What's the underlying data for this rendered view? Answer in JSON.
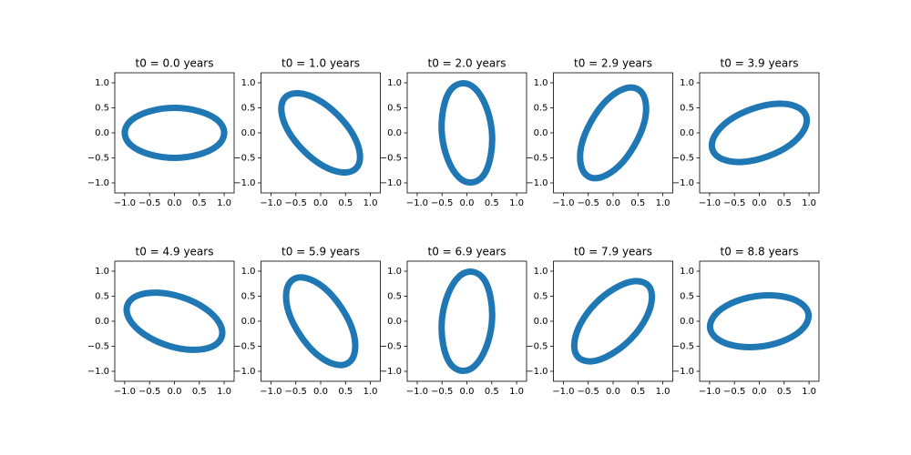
{
  "chart_data": [
    {
      "type": "line",
      "title": "t0 = 0.0 years",
      "color": "#1f77b4",
      "x": [
        1,
        0.87,
        0.5,
        0,
        -0.5,
        -0.87,
        -1,
        -0.87,
        -0.5,
        0,
        0.5,
        0.87
      ],
      "series": [
        {
          "values": [
            0,
            0.25,
            0.43,
            0.5,
            0.43,
            0.25,
            0,
            -0.25,
            -0.43,
            -0.5,
            -0.43,
            -0.25
          ]
        }
      ],
      "xlim": [
        -1.2,
        1.2
      ],
      "ylim": [
        -1.2,
        1.2
      ],
      "xticks": [
        {
          "value": -1,
          "label": "−1.0"
        },
        {
          "value": -0.5,
          "label": "−0.5"
        },
        {
          "value": 0,
          "label": "0.0"
        },
        {
          "value": 0.5,
          "label": "0.5"
        },
        {
          "value": 1,
          "label": "1.0"
        }
      ],
      "yticks": [
        {
          "value": -1,
          "label": "−1.0"
        },
        {
          "value": -0.5,
          "label": "−0.5"
        },
        {
          "value": 0,
          "label": "0.0"
        },
        {
          "value": 0.5,
          "label": "0.5"
        },
        {
          "value": 1,
          "label": "1.0"
        }
      ]
    },
    {
      "type": "line",
      "title": "t0 = 1.0 years",
      "color": "#1f77b4",
      "x": [
        -0.71,
        -0.79,
        -0.66,
        -0.35,
        0.05,
        0.44,
        0.71,
        0.79,
        0.66,
        0.35,
        -0.05,
        -0.44
      ],
      "series": [
        {
          "values": [
            0.71,
            0.44,
            0.05,
            -0.35,
            -0.66,
            -0.79,
            -0.71,
            -0.44,
            -0.05,
            0.35,
            0.66,
            0.79
          ]
        }
      ],
      "xlim": [
        -1.2,
        1.2
      ],
      "ylim": [
        -1.2,
        1.2
      ],
      "xticks": [
        {
          "value": -1,
          "label": "−1.0"
        },
        {
          "value": -0.5,
          "label": "−0.5"
        },
        {
          "value": 0,
          "label": "0.0"
        },
        {
          "value": 0.5,
          "label": "0.5"
        },
        {
          "value": 1,
          "label": "1.0"
        }
      ],
      "yticks": [
        {
          "value": -1,
          "label": "−1.0"
        },
        {
          "value": -0.5,
          "label": "−0.5"
        },
        {
          "value": 0,
          "label": "0.0"
        },
        {
          "value": 0.5,
          "label": "0.5"
        },
        {
          "value": 1,
          "label": "1.0"
        }
      ]
    },
    {
      "type": "line",
      "title": "t0 = 2.0 years",
      "color": "#1f77b4",
      "x": [
        -0.1,
        -0.34,
        -0.48,
        -0.5,
        -0.38,
        -0.16,
        0.1,
        0.34,
        0.48,
        0.5,
        0.38,
        0.16
      ],
      "series": [
        {
          "values": [
            0.99,
            0.84,
            0.45,
            -0.05,
            -0.54,
            -0.89,
            -0.99,
            -0.84,
            -0.45,
            0.05,
            0.54,
            0.89
          ]
        }
      ],
      "xlim": [
        -1.2,
        1.2
      ],
      "ylim": [
        -1.2,
        1.2
      ],
      "xticks": [
        {
          "value": -1,
          "label": "−1.0"
        },
        {
          "value": -0.5,
          "label": "−0.5"
        },
        {
          "value": 0,
          "label": "0.0"
        },
        {
          "value": 0.5,
          "label": "0.5"
        },
        {
          "value": 1,
          "label": "1.0"
        }
      ],
      "yticks": [
        {
          "value": -1,
          "label": "−1.0"
        },
        {
          "value": -0.5,
          "label": "−0.5"
        },
        {
          "value": 0,
          "label": "0.0"
        },
        {
          "value": 0.5,
          "label": "0.5"
        },
        {
          "value": 1,
          "label": "1.0"
        }
      ]
    },
    {
      "type": "line",
      "title": "t0 = 2.9 years",
      "color": "#1f77b4",
      "x": [
        0.5,
        0.22,
        -0.13,
        -0.43,
        -0.63,
        -0.65,
        -0.5,
        -0.22,
        0.13,
        0.43,
        0.63,
        0.65
      ],
      "series": [
        {
          "values": [
            0.87,
            0.88,
            0.65,
            0.25,
            -0.22,
            -0.63,
            -0.87,
            -0.88,
            -0.65,
            -0.25,
            0.22,
            0.63
          ]
        }
      ],
      "xlim": [
        -1.2,
        1.2
      ],
      "ylim": [
        -1.2,
        1.2
      ],
      "xticks": [
        {
          "value": -1,
          "label": "−1.0"
        },
        {
          "value": -0.5,
          "label": "−0.5"
        },
        {
          "value": 0,
          "label": "0.0"
        },
        {
          "value": 0.5,
          "label": "0.5"
        },
        {
          "value": 1,
          "label": "1.0"
        }
      ],
      "yticks": [
        {
          "value": -1,
          "label": "−1.0"
        },
        {
          "value": -0.5,
          "label": "−0.5"
        },
        {
          "value": 0,
          "label": "0.0"
        },
        {
          "value": 0.5,
          "label": "0.5"
        },
        {
          "value": 1,
          "label": "1.0"
        }
      ]
    },
    {
      "type": "line",
      "title": "t0 = 3.9 years",
      "color": "#1f77b4",
      "x": [
        0.94,
        0.73,
        0.32,
        -0.17,
        -0.62,
        -0.9,
        -0.94,
        -0.73,
        -0.32,
        0.17,
        0.62,
        0.9
      ],
      "series": [
        {
          "values": [
            0.34,
            0.53,
            0.58,
            0.47,
            0.24,
            -0.06,
            -0.34,
            -0.53,
            -0.58,
            -0.47,
            -0.24,
            0.06
          ]
        }
      ],
      "xlim": [
        -1.2,
        1.2
      ],
      "ylim": [
        -1.2,
        1.2
      ],
      "xticks": [
        {
          "value": -1,
          "label": "−1.0"
        },
        {
          "value": -0.5,
          "label": "−0.5"
        },
        {
          "value": 0,
          "label": "0.0"
        },
        {
          "value": 0.5,
          "label": "0.5"
        },
        {
          "value": 1,
          "label": "1.0"
        }
      ],
      "yticks": [
        {
          "value": -1,
          "label": "−1.0"
        },
        {
          "value": -0.5,
          "label": "−0.5"
        },
        {
          "value": 0,
          "label": "0.0"
        },
        {
          "value": 0.5,
          "label": "0.5"
        },
        {
          "value": 1,
          "label": "1.0"
        }
      ]
    },
    {
      "type": "line",
      "title": "t0 = 4.9 years",
      "color": "#1f77b4",
      "x": [
        -0.95,
        -0.9,
        -0.61,
        -0.15,
        0.34,
        0.75,
        0.95,
        0.9,
        0.61,
        0.15,
        -0.34,
        -0.75
      ],
      "series": [
        {
          "values": [
            0.31,
            0.03,
            -0.26,
            -0.48,
            -0.57,
            -0.51,
            -0.31,
            -0.03,
            0.26,
            0.48,
            0.57,
            0.51
          ]
        }
      ],
      "xlim": [
        -1.2,
        1.2
      ],
      "ylim": [
        -1.2,
        1.2
      ],
      "xticks": [
        {
          "value": -1,
          "label": "−1.0"
        },
        {
          "value": -0.5,
          "label": "−0.5"
        },
        {
          "value": 0,
          "label": "0.0"
        },
        {
          "value": 0.5,
          "label": "0.5"
        },
        {
          "value": 1,
          "label": "1.0"
        }
      ],
      "yticks": [
        {
          "value": -1,
          "label": "−1.0"
        },
        {
          "value": -0.5,
          "label": "−0.5"
        },
        {
          "value": 0,
          "label": "0.0"
        },
        {
          "value": 0.5,
          "label": "0.5"
        },
        {
          "value": 1,
          "label": "1.0"
        }
      ]
    },
    {
      "type": "line",
      "title": "t0 = 5.9 years",
      "color": "#1f77b4",
      "x": [
        -0.56,
        -0.69,
        -0.64,
        -0.41,
        -0.08,
        0.28,
        0.56,
        0.69,
        0.64,
        0.41,
        0.08,
        -0.28
      ],
      "series": [
        {
          "values": [
            0.83,
            0.58,
            0.17,
            -0.28,
            -0.66,
            -0.86,
            -0.83,
            -0.58,
            -0.17,
            0.28,
            0.66,
            0.86
          ]
        }
      ],
      "xlim": [
        -1.2,
        1.2
      ],
      "ylim": [
        -1.2,
        1.2
      ],
      "xticks": [
        {
          "value": -1,
          "label": "−1.0"
        },
        {
          "value": -0.5,
          "label": "−0.5"
        },
        {
          "value": 0,
          "label": "0.0"
        },
        {
          "value": 0.5,
          "label": "0.5"
        },
        {
          "value": 1,
          "label": "1.0"
        }
      ],
      "yticks": [
        {
          "value": -1,
          "label": "−1.0"
        },
        {
          "value": -0.5,
          "label": "−0.5"
        },
        {
          "value": 0,
          "label": "0.0"
        },
        {
          "value": 0.5,
          "label": "0.5"
        },
        {
          "value": 1,
          "label": "1.0"
        }
      ]
    },
    {
      "type": "line",
      "title": "t0 = 6.9 years",
      "color": "#1f77b4",
      "x": [
        0.1,
        -0.16,
        -0.38,
        -0.5,
        -0.48,
        -0.34,
        -0.1,
        0.16,
        0.38,
        0.5,
        0.48,
        0.34
      ],
      "series": [
        {
          "values": [
            0.99,
            0.89,
            0.54,
            0.05,
            -0.45,
            -0.84,
            -0.99,
            -0.89,
            -0.54,
            -0.05,
            0.45,
            0.84
          ]
        }
      ],
      "xlim": [
        -1.2,
        1.2
      ],
      "ylim": [
        -1.2,
        1.2
      ],
      "xticks": [
        {
          "value": -1,
          "label": "−1.0"
        },
        {
          "value": -0.5,
          "label": "−0.5"
        },
        {
          "value": 0,
          "label": "0.0"
        },
        {
          "value": 0.5,
          "label": "0.5"
        },
        {
          "value": 1,
          "label": "1.0"
        }
      ],
      "yticks": [
        {
          "value": -1,
          "label": "−1.0"
        },
        {
          "value": -0.5,
          "label": "−0.5"
        },
        {
          "value": 0,
          "label": "0.0"
        },
        {
          "value": 0.5,
          "label": "0.5"
        },
        {
          "value": 1,
          "label": "1.0"
        }
      ]
    },
    {
      "type": "line",
      "title": "t0 = 7.9 years",
      "color": "#1f77b4",
      "x": [
        0.7,
        0.42,
        0.04,
        -0.36,
        -0.66,
        -0.78,
        -0.7,
        -0.42,
        -0.04,
        0.36,
        0.66,
        0.78
      ],
      "series": [
        {
          "values": [
            0.72,
            0.8,
            0.66,
            0.35,
            -0.06,
            -0.45,
            -0.72,
            -0.8,
            -0.66,
            -0.35,
            0.06,
            0.45
          ]
        }
      ],
      "xlim": [
        -1.2,
        1.2
      ],
      "ylim": [
        -1.2,
        1.2
      ],
      "xticks": [
        {
          "value": -1,
          "label": "−1.0"
        },
        {
          "value": -0.5,
          "label": "−0.5"
        },
        {
          "value": 0,
          "label": "0.0"
        },
        {
          "value": 0.5,
          "label": "0.5"
        },
        {
          "value": 1,
          "label": "1.0"
        }
      ],
      "yticks": [
        {
          "value": -1,
          "label": "−1.0"
        },
        {
          "value": -0.5,
          "label": "−0.5"
        },
        {
          "value": 0,
          "label": "0.0"
        },
        {
          "value": 0.5,
          "label": "0.5"
        },
        {
          "value": 1,
          "label": "1.0"
        }
      ]
    },
    {
      "type": "line",
      "title": "t0 = 8.8 years",
      "color": "#1f77b4",
      "x": [
        0.99,
        0.82,
        0.44,
        -0.07,
        -0.56,
        -0.89,
        -0.99,
        -0.82,
        -0.44,
        0.07,
        0.56,
        0.89
      ],
      "series": [
        {
          "values": [
            0.14,
            0.37,
            0.5,
            0.5,
            0.36,
            0.13,
            -0.14,
            -0.37,
            -0.5,
            -0.5,
            -0.36,
            -0.13
          ]
        }
      ],
      "xlim": [
        -1.2,
        1.2
      ],
      "ylim": [
        -1.2,
        1.2
      ],
      "xticks": [
        {
          "value": -1,
          "label": "−1.0"
        },
        {
          "value": -0.5,
          "label": "−0.5"
        },
        {
          "value": 0,
          "label": "0.0"
        },
        {
          "value": 0.5,
          "label": "0.5"
        },
        {
          "value": 1,
          "label": "1.0"
        }
      ],
      "yticks": [
        {
          "value": -1,
          "label": "−1.0"
        },
        {
          "value": -0.5,
          "label": "−0.5"
        },
        {
          "value": 0,
          "label": "0.0"
        },
        {
          "value": 0.5,
          "label": "0.5"
        },
        {
          "value": 1,
          "label": "1.0"
        }
      ]
    }
  ]
}
